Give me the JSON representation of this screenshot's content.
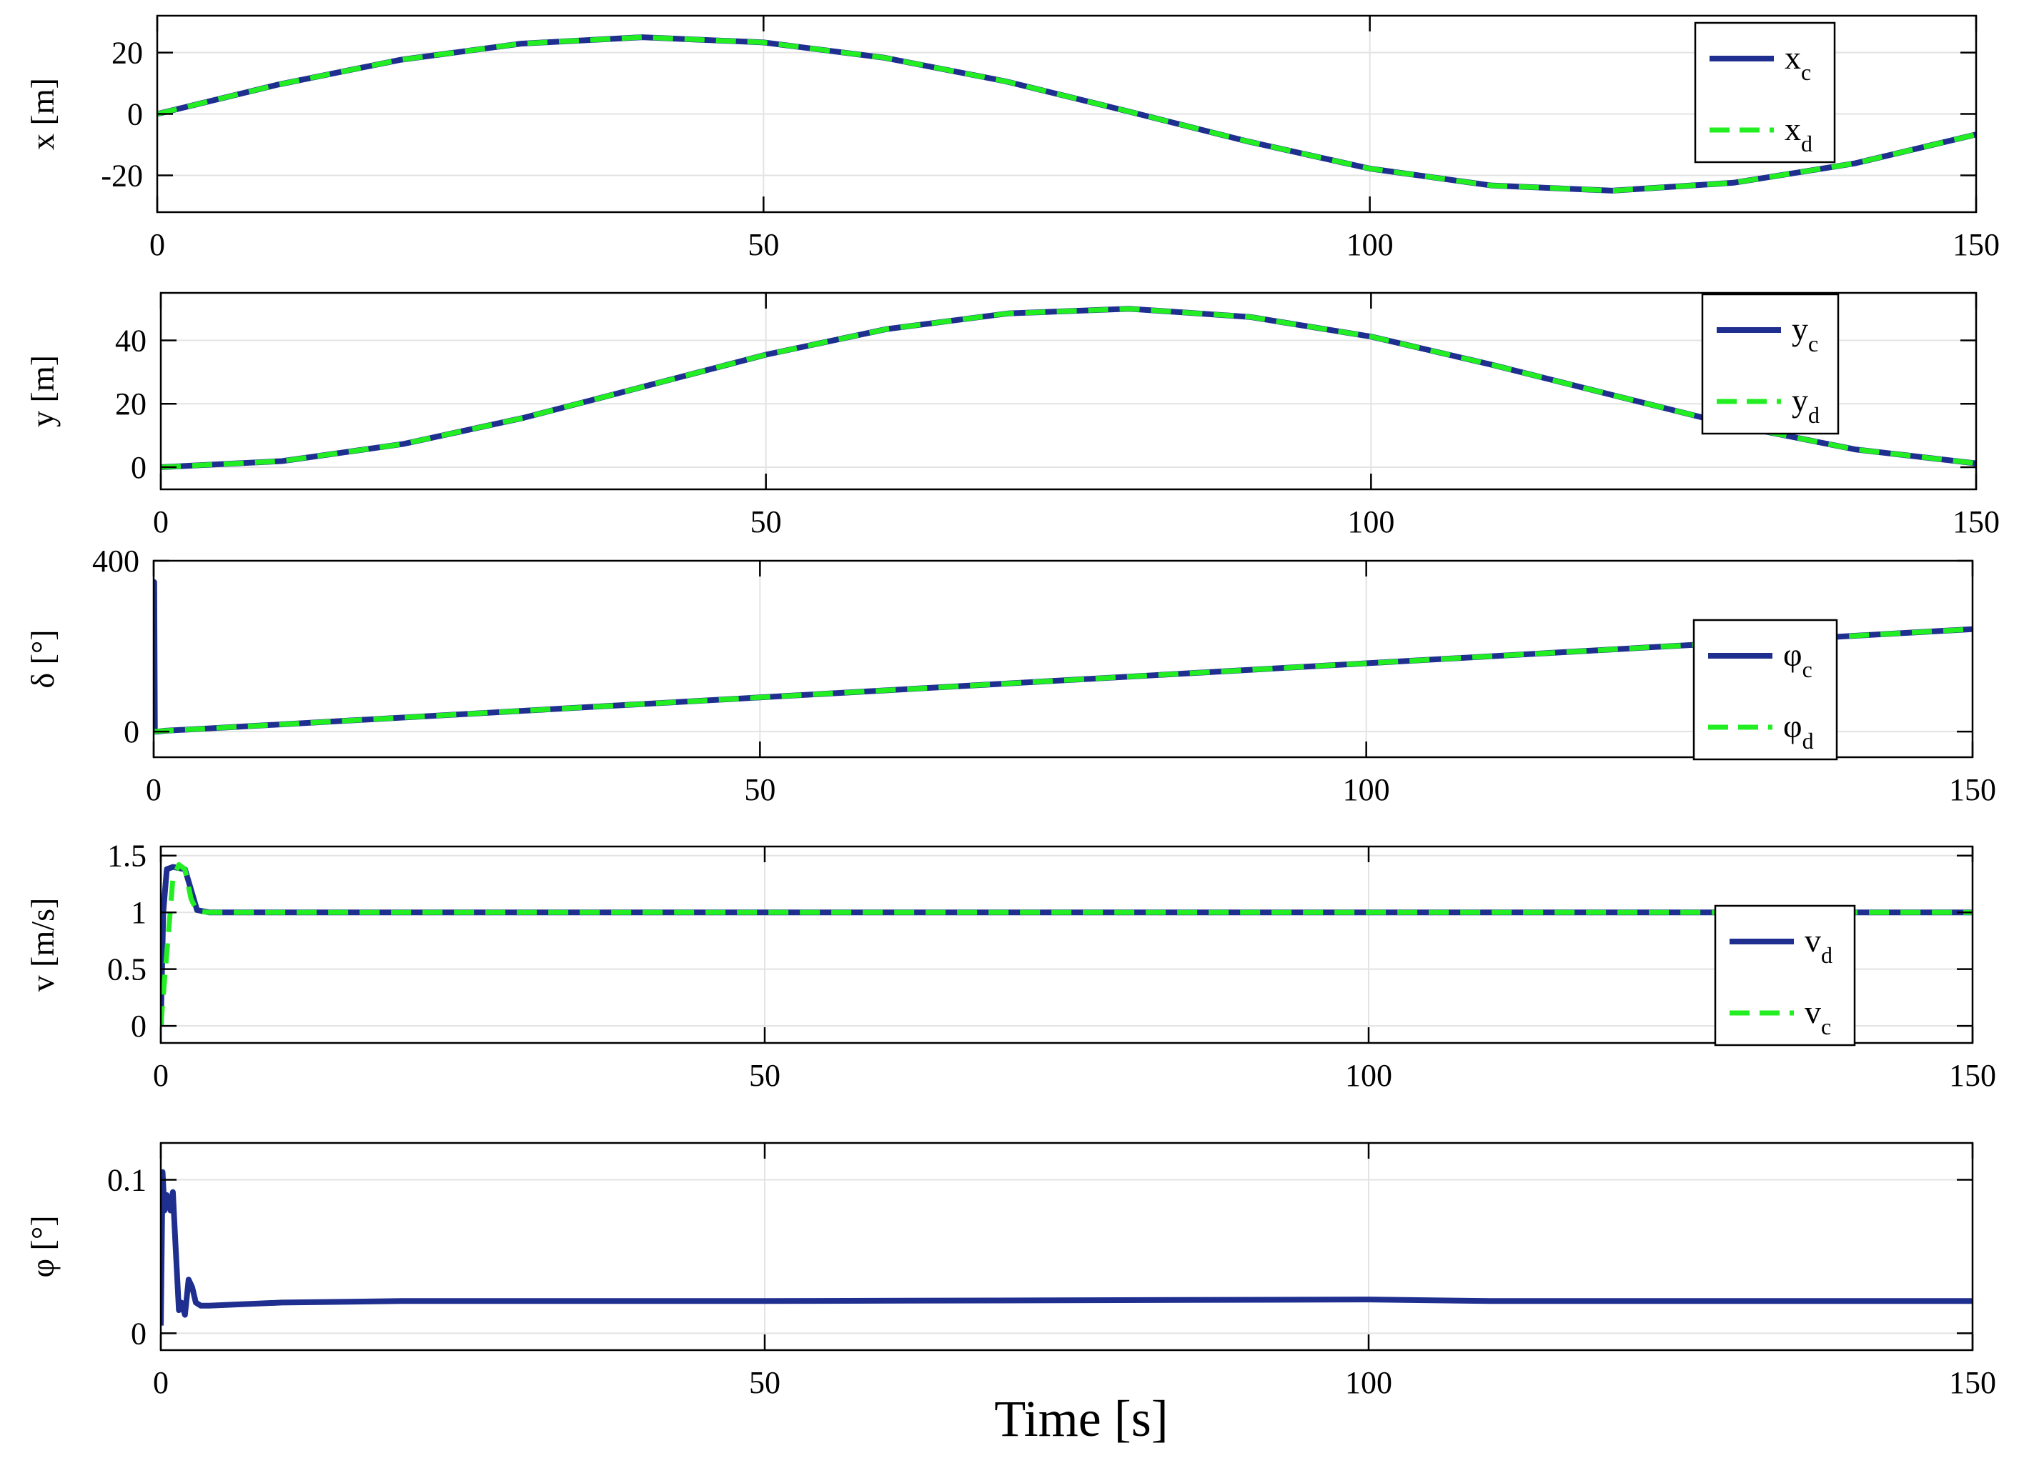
{
  "figure": {
    "xlabel": "Time [s]"
  },
  "colors": {
    "series_solid": "#1f2f8f",
    "series_dashed": "#22ee22",
    "grid": "#e3e3e3",
    "axes": "#000000"
  },
  "chart_data": [
    {
      "type": "line",
      "ylabel": "x [m]",
      "xlim": [
        0,
        150
      ],
      "ylim": [
        -32,
        32
      ],
      "xticks": [
        0,
        50,
        100,
        150
      ],
      "xtick_labels": [
        "0",
        "50",
        "100",
        "150"
      ],
      "yticks": [
        20,
        0,
        -20
      ],
      "ytick_labels": [
        "20",
        "0",
        "-20"
      ],
      "legend_position": "top-right",
      "series": [
        {
          "name": "x",
          "sub": "c",
          "style": "solid",
          "x": [
            0,
            10,
            20,
            30,
            40,
            50,
            60,
            70,
            80,
            90,
            100,
            110,
            120,
            130,
            140,
            150
          ],
          "y": [
            0,
            9.6,
            17.6,
            22.9,
            25.0,
            23.3,
            18.3,
            10.6,
            0.9,
            -9.0,
            -17.8,
            -23.3,
            -25.0,
            -22.4,
            -16.1,
            -6.7
          ]
        },
        {
          "name": "x",
          "sub": "d",
          "style": "dashed",
          "x": [
            0,
            10,
            20,
            30,
            40,
            50,
            60,
            70,
            80,
            90,
            100,
            110,
            120,
            130,
            140,
            150
          ],
          "y": [
            0,
            9.6,
            17.6,
            22.9,
            25.0,
            23.3,
            18.3,
            10.6,
            0.9,
            -9.0,
            -17.8,
            -23.3,
            -25.0,
            -22.4,
            -16.1,
            -6.7
          ]
        }
      ]
    },
    {
      "type": "line",
      "ylabel": "y [m]",
      "xlim": [
        0,
        150
      ],
      "ylim": [
        -7,
        55
      ],
      "xticks": [
        0,
        50,
        100,
        150
      ],
      "xtick_labels": [
        "0",
        "50",
        "100",
        "150"
      ],
      "yticks": [
        40,
        20,
        0
      ],
      "ytick_labels": [
        "40",
        "20",
        "0"
      ],
      "legend_position": "top-right",
      "series": [
        {
          "name": "y",
          "sub": "c",
          "style": "solid",
          "x": [
            0,
            10,
            20,
            30,
            40,
            50,
            60,
            70,
            80,
            90,
            100,
            110,
            120,
            130,
            140,
            150
          ],
          "y": [
            0,
            1.9,
            7.3,
            15.6,
            25.5,
            35.5,
            43.6,
            48.5,
            50.0,
            47.4,
            41.2,
            32.3,
            22.7,
            13.2,
            5.6,
            1.2
          ]
        },
        {
          "name": "y",
          "sub": "d",
          "style": "dashed",
          "x": [
            0,
            10,
            20,
            30,
            40,
            50,
            60,
            70,
            80,
            90,
            100,
            110,
            120,
            130,
            140,
            150
          ],
          "y": [
            0,
            1.9,
            7.3,
            15.6,
            25.5,
            35.5,
            43.6,
            48.5,
            50.0,
            47.4,
            41.2,
            32.3,
            22.7,
            13.2,
            5.6,
            1.2
          ]
        }
      ]
    },
    {
      "type": "line",
      "ylabel": "δ [°]",
      "xlim": [
        0,
        150
      ],
      "ylim": [
        -60,
        400
      ],
      "xticks": [
        0,
        50,
        100,
        150
      ],
      "xtick_labels": [
        "0",
        "50",
        "100",
        "150"
      ],
      "yticks": [
        400,
        0
      ],
      "ytick_labels": [
        "400",
        "0"
      ],
      "legend_position": "right",
      "series": [
        {
          "name": "φ",
          "sub": "c",
          "style": "solid",
          "x": [
            0,
            0.05,
            0.1,
            0.3,
            1,
            5,
            25,
            50,
            75,
            100,
            125,
            150
          ],
          "y": [
            0,
            350,
            0,
            0,
            2,
            8,
            40,
            80,
            120,
            160,
            200,
            240
          ]
        },
        {
          "name": "φ",
          "sub": "d",
          "style": "dashed",
          "x": [
            0,
            1,
            5,
            25,
            50,
            75,
            100,
            125,
            150
          ],
          "y": [
            0,
            2,
            8,
            40,
            80,
            120,
            160,
            200,
            240
          ]
        }
      ]
    },
    {
      "type": "line",
      "ylabel": "v [m/s]",
      "xlim": [
        0,
        150
      ],
      "ylim": [
        -0.15,
        1.58
      ],
      "xticks": [
        0,
        50,
        100,
        150
      ],
      "xtick_labels": [
        "0",
        "50",
        "100",
        "150"
      ],
      "yticks": [
        1.5,
        1,
        0.5,
        0
      ],
      "ytick_labels": [
        "1.5",
        "1",
        "0.5",
        "0"
      ],
      "legend_position": "right",
      "series": [
        {
          "name": "v",
          "sub": "d",
          "style": "solid",
          "x": [
            0,
            0.2,
            0.5,
            1.0,
            1.5,
            2.0,
            2.5,
            3.0,
            4.0,
            150
          ],
          "y": [
            0,
            1.0,
            1.38,
            1.4,
            1.39,
            1.38,
            1.2,
            1.02,
            1.0,
            1.0
          ]
        },
        {
          "name": "v",
          "sub": "c",
          "style": "dashed",
          "x": [
            0,
            0.3,
            0.7,
            1.0,
            1.5,
            2.0,
            2.5,
            3.0,
            4.0,
            150
          ],
          "y": [
            0,
            0.4,
            0.9,
            1.3,
            1.42,
            1.38,
            1.12,
            1.01,
            1.0,
            1.0
          ]
        }
      ]
    },
    {
      "type": "line",
      "ylabel": "φ [°]",
      "xlim": [
        0,
        150
      ],
      "ylim": [
        -0.011,
        0.124
      ],
      "xticks": [
        0,
        50,
        100,
        150
      ],
      "xtick_labels": [
        "0",
        "50",
        "100",
        "150"
      ],
      "yticks": [
        0.1,
        0
      ],
      "ytick_labels": [
        "0.1",
        "0"
      ],
      "series": [
        {
          "name": "",
          "style": "solid",
          "x": [
            0,
            0.15,
            0.3,
            0.5,
            0.8,
            1.0,
            1.2,
            1.5,
            1.7,
            2.0,
            2.3,
            2.6,
            2.9,
            3.3,
            4,
            10,
            20,
            50,
            100,
            110,
            150
          ],
          "y": [
            0.005,
            0.105,
            0.08,
            0.09,
            0.08,
            0.092,
            0.06,
            0.015,
            0.02,
            0.012,
            0.035,
            0.03,
            0.02,
            0.018,
            0.018,
            0.02,
            0.021,
            0.021,
            0.022,
            0.021,
            0.021
          ]
        }
      ]
    }
  ]
}
